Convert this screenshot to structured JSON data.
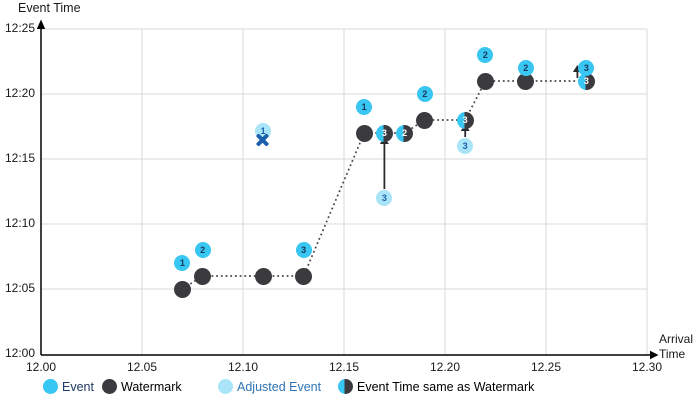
{
  "chart_data": {
    "type": "scatter",
    "xlabel": "Arrival Time",
    "x_title_lines": [
      "Arrival",
      "Time"
    ],
    "ylabel": "Event Time",
    "x_ticks": [
      "12.00",
      "12.05",
      "12.10",
      "12.15",
      "12.20",
      "12.25",
      "12.30"
    ],
    "y_ticks": [
      "12:00",
      "12:05",
      "12:10",
      "12:15",
      "12:20",
      "12:25"
    ],
    "xlim": [
      "12.00",
      "12.30"
    ],
    "ylim": [
      "12:00",
      "12:25"
    ],
    "grid": true,
    "legend_position": "bottom",
    "series": {
      "events": [
        {
          "label": "1",
          "arrival": "12.07",
          "event_time": "12:07"
        },
        {
          "label": "2",
          "arrival": "12.08",
          "event_time": "12:08"
        },
        {
          "label": "3",
          "arrival": "12.13",
          "event_time": "12:08"
        },
        {
          "label": "1",
          "arrival": "12.16",
          "event_time": "12:19"
        },
        {
          "label": "2",
          "arrival": "12.19",
          "event_time": "12:20"
        },
        {
          "label": "2",
          "arrival": "12.22",
          "event_time": "12:23"
        },
        {
          "label": "2",
          "arrival": "12.24",
          "event_time": "12:22"
        },
        {
          "label": "3",
          "arrival": "12.27",
          "event_time": "12:22"
        }
      ],
      "watermarks": [
        {
          "arrival": "12.07",
          "event_time": "12:05"
        },
        {
          "arrival": "12.08",
          "event_time": "12:06"
        },
        {
          "arrival": "12.11",
          "event_time": "12:06"
        },
        {
          "arrival": "12.13",
          "event_time": "12:06"
        },
        {
          "arrival": "12.16",
          "event_time": "12:17"
        },
        {
          "arrival": "12.19",
          "event_time": "12:18"
        },
        {
          "arrival": "12.22",
          "event_time": "12:21"
        },
        {
          "arrival": "12.24",
          "event_time": "12:21"
        }
      ],
      "event_time_same_as_watermark": [
        {
          "label": "3",
          "arrival": "12.17",
          "event_time": "12:17"
        },
        {
          "label": "2",
          "arrival": "12.18",
          "event_time": "12:17"
        },
        {
          "label": "3",
          "arrival": "12.21",
          "event_time": "12:18"
        },
        {
          "label": "3",
          "arrival": "12.27",
          "event_time": "12:21"
        }
      ],
      "adjusted_events": [
        {
          "label": "3",
          "arrival": "12.17",
          "event_time": "12:12"
        },
        {
          "label": "3",
          "arrival": "12.21",
          "event_time": "12:16"
        }
      ],
      "dropped_events": [
        {
          "label": "1",
          "arrival": "12.11",
          "event_time": "12:17"
        }
      ],
      "adjustment_arrows": [
        {
          "arrival": "12.17",
          "from": "12:12",
          "to": "12:17",
          "side": "center"
        },
        {
          "arrival": "12.21",
          "from": "12:16",
          "to": "12:18",
          "side": "center"
        },
        {
          "arrival": "12.27",
          "from": "12:21",
          "to": "12:22",
          "side": "left"
        }
      ],
      "watermark_line": [
        {
          "arrival": "12.07",
          "event_time": "12:05"
        },
        {
          "arrival": "12.08",
          "event_time": "12:06"
        },
        {
          "arrival": "12.13",
          "event_time": "12:06"
        },
        {
          "arrival": "12.16",
          "event_time": "12:17"
        },
        {
          "arrival": "12.18",
          "event_time": "12:17"
        },
        {
          "arrival": "12.19",
          "event_time": "12:18"
        },
        {
          "arrival": "12.21",
          "event_time": "12:18"
        },
        {
          "arrival": "12.22",
          "event_time": "12:21"
        },
        {
          "arrival": "12.27",
          "event_time": "12:21"
        }
      ]
    }
  },
  "legend": {
    "items": [
      {
        "swatch": "event",
        "label": "Event",
        "label_color": "#1F3864"
      },
      {
        "swatch": "watermark",
        "label": "Watermark",
        "label_color": "#000000"
      },
      {
        "swatch": "adjusted-event",
        "label": "Adjusted Event",
        "label_color": "#2E74B5"
      },
      {
        "swatch": "same-as-watermark",
        "label": "Event Time same as Watermark",
        "label_color": "#000000"
      }
    ]
  },
  "colors": {
    "event": "#38C6F2",
    "watermark": "#3B3B3F",
    "adjusted_event": "#A9E4F8",
    "event_number": "#17375E",
    "adjusted_number": "#1E5FA8",
    "same_number": "#FFFFFF",
    "dropped_x": "#1D5FAF",
    "gridline": "#D9D9D9",
    "axis": "#000000",
    "watermark_line": "#47474B",
    "arrow": "#2B2B2E"
  }
}
